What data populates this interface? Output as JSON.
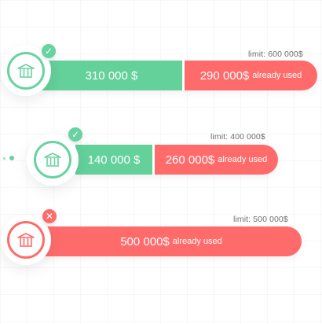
{
  "accounts": [
    {
      "limit_text": "limit: 600 000$",
      "amount_text": "310 000 $",
      "used_text": "290 000$",
      "used_suffix": "already used",
      "status": "approved",
      "colors": {
        "ring": "#69d2a2",
        "amount": "#64d09a",
        "used": "#ff6b6b"
      }
    },
    {
      "limit_text": "limit: 400 000$",
      "amount_text": "140 000 $",
      "used_text": "260 000$",
      "used_suffix": "already used",
      "status": "approved",
      "colors": {
        "ring": "#69d2a2",
        "amount": "#64d09a",
        "used": "#ff6b6b"
      }
    },
    {
      "limit_text": "limit: 500 000$",
      "amount_text": "",
      "used_text": "500 000$",
      "used_suffix": "already used",
      "status": "rejected",
      "colors": {
        "ring": "#ff6b6b",
        "amount": "#ff6b6b",
        "used": "#ff6b6b"
      }
    }
  ],
  "icons": {
    "bank": "bank-icon",
    "approved": "check-icon",
    "rejected": "close-icon"
  }
}
